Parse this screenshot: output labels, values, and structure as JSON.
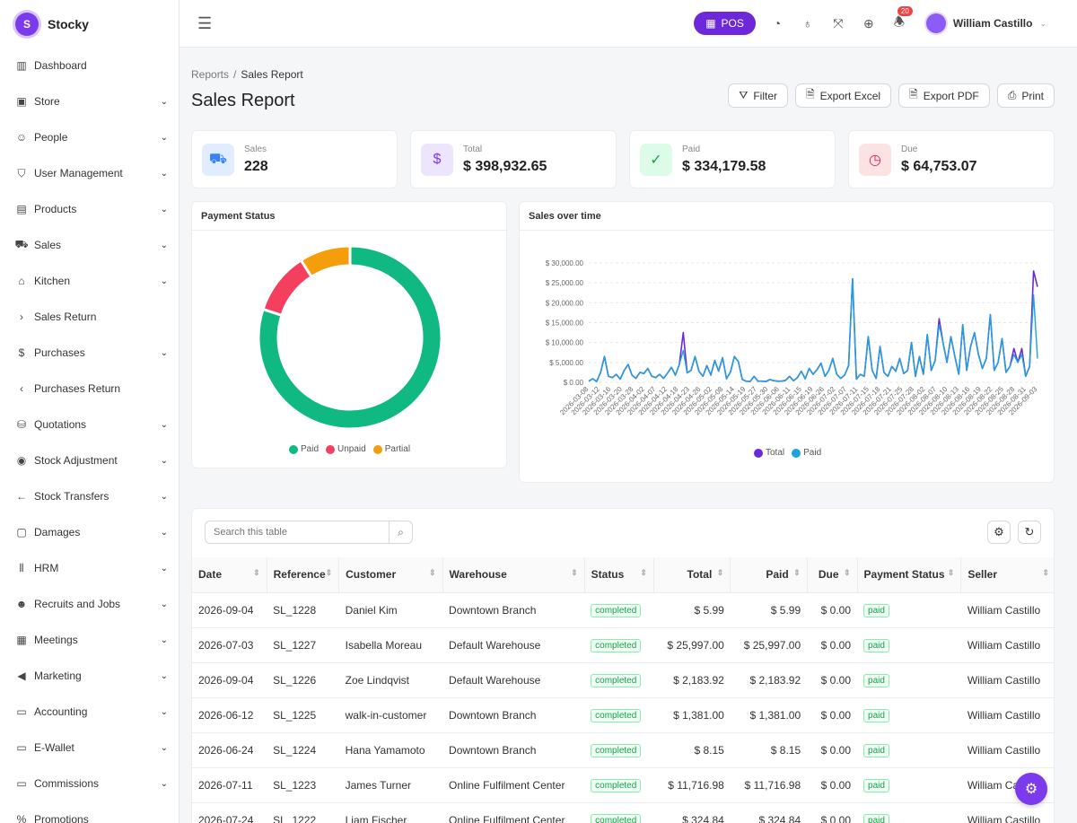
{
  "app": {
    "name": "Stocky",
    "logo_letter": "S"
  },
  "colors": {
    "primary": "#6d28d9",
    "paid": "#10b981",
    "unpaid": "#f43f5e",
    "partial": "#f59e0b",
    "total_line": "#6d28d9",
    "paid_line": "#1aa3e0"
  },
  "sidebar": {
    "items": [
      {
        "label": "Dashboard",
        "icon": "bar-chart-icon",
        "glyph": "▥",
        "chevron": ""
      },
      {
        "label": "Store",
        "icon": "store-icon",
        "glyph": "▣",
        "chevron": "⌄"
      },
      {
        "label": "People",
        "icon": "people-icon",
        "glyph": "☺",
        "chevron": "⌄"
      },
      {
        "label": "User Management",
        "icon": "shield-icon",
        "glyph": "⛉",
        "chevron": "⌄"
      },
      {
        "label": "Products",
        "icon": "books-icon",
        "glyph": "▤",
        "chevron": "⌄"
      },
      {
        "label": "Sales",
        "icon": "cart-icon",
        "glyph": "⛟",
        "chevron": "⌄"
      },
      {
        "label": "Kitchen",
        "icon": "chef-hat-icon",
        "glyph": "⌂",
        "chevron": "⌄"
      },
      {
        "label": "Sales Return",
        "icon": "chevron-right-icon",
        "glyph": "›",
        "chevron": ""
      },
      {
        "label": "Purchases",
        "icon": "receipt-icon",
        "glyph": "$",
        "chevron": "⌄"
      },
      {
        "label": "Purchases Return",
        "icon": "chevron-left-icon",
        "glyph": "‹",
        "chevron": ""
      },
      {
        "label": "Quotations",
        "icon": "basket-icon",
        "glyph": "⛁",
        "chevron": "⌄"
      },
      {
        "label": "Stock Adjustment",
        "icon": "location-pin-icon",
        "glyph": "◉",
        "chevron": "⌄"
      },
      {
        "label": "Stock Transfers",
        "icon": "arrow-left-icon",
        "glyph": "←",
        "chevron": "⌄"
      },
      {
        "label": "Damages",
        "icon": "box-icon",
        "glyph": "▢",
        "chevron": "⌄"
      },
      {
        "label": "HRM",
        "icon": "library-icon",
        "glyph": "⫴",
        "chevron": "⌄"
      },
      {
        "label": "Recruits and Jobs",
        "icon": "users-icon",
        "glyph": "☻",
        "chevron": "⌄"
      },
      {
        "label": "Meetings",
        "icon": "calendar-icon",
        "glyph": "▦",
        "chevron": "⌄"
      },
      {
        "label": "Marketing",
        "icon": "megaphone-icon",
        "glyph": "◀",
        "chevron": "⌄"
      },
      {
        "label": "Accounting",
        "icon": "wallet-icon",
        "glyph": "▭",
        "chevron": "⌄"
      },
      {
        "label": "E-Wallet",
        "icon": "e-wallet-icon",
        "glyph": "▭",
        "chevron": "⌄"
      },
      {
        "label": "Commissions",
        "icon": "commission-wallet-icon",
        "glyph": "▭",
        "chevron": "⌄"
      },
      {
        "label": "Promotions",
        "icon": "percent-icon",
        "glyph": "%",
        "chevron": ""
      }
    ]
  },
  "topbar": {
    "pos_label": "POS",
    "notification_count": "20",
    "user_name": "William Castillo"
  },
  "breadcrumb": {
    "parent": "Reports",
    "separator": "/",
    "current": "Sales Report"
  },
  "page_title": "Sales Report",
  "actions": {
    "filter": "Filter",
    "export_excel": "Export Excel",
    "export_pdf": "Export PDF",
    "print": "Print"
  },
  "stats": [
    {
      "label": "Sales",
      "value": "228",
      "icon": "cart-icon",
      "glyph": "⛟",
      "bg": "#e0ecff",
      "fg": "#3b82f6"
    },
    {
      "label": "Total",
      "value": "$ 398,932.65",
      "icon": "dollar-circle-icon",
      "glyph": "$",
      "bg": "#ede4fd",
      "fg": "#7c3aed"
    },
    {
      "label": "Paid",
      "value": "$ 334,179.58",
      "icon": "check-circle-icon",
      "glyph": "✓",
      "bg": "#dcfce7",
      "fg": "#16a34a"
    },
    {
      "label": "Due",
      "value": "$ 64,753.07",
      "icon": "clock-icon",
      "glyph": "◷",
      "bg": "#fde2e4",
      "fg": "#e11d48"
    }
  ],
  "payment_status_chart": {
    "title": "Payment Status",
    "legend": [
      {
        "label": "Paid",
        "color": "#10b981"
      },
      {
        "label": "Unpaid",
        "color": "#f43f5e"
      },
      {
        "label": "Partial",
        "color": "#f59e0b"
      }
    ]
  },
  "sales_chart": {
    "title": "Sales over time",
    "legend": [
      {
        "label": "Total",
        "color": "#6d28d9"
      },
      {
        "label": "Paid",
        "color": "#1aa3e0"
      }
    ]
  },
  "chart_data": [
    {
      "type": "pie",
      "title": "Payment Status",
      "categories": [
        "Paid",
        "Unpaid",
        "Partial"
      ],
      "values": [
        80,
        11,
        9
      ],
      "colors": [
        "#10b981",
        "#f43f5e",
        "#f59e0b"
      ],
      "legend_position": "bottom"
    },
    {
      "type": "line",
      "title": "Sales over time",
      "ylim": [
        0,
        30000
      ],
      "y_ticks": [
        "$ 0.00",
        "$ 5,000.00",
        "$ 10,000.00",
        "$ 15,000.00",
        "$ 20,000.00",
        "$ 25,000.00",
        "$ 30,000.00"
      ],
      "x_tick_labels": [
        "2026-03-08",
        "2026-03-12",
        "2026-03-16",
        "2026-03-20",
        "2026-03-28",
        "2026-04-02",
        "2026-04-07",
        "2026-04-12",
        "2026-04-18",
        "2026-04-23",
        "2026-04-26",
        "2026-05-02",
        "2026-05-08",
        "2026-05-14",
        "2026-05-19",
        "2026-05-27",
        "2026-05-30",
        "2026-06-06",
        "2026-06-11",
        "2026-06-15",
        "2026-06-19",
        "2026-06-26",
        "2026-07-02",
        "2026-07-07",
        "2026-07-11",
        "2026-07-15",
        "2026-07-18",
        "2026-07-21",
        "2026-07-25",
        "2026-07-28",
        "2026-08-02",
        "2026-08-07",
        "2026-08-10",
        "2026-08-13",
        "2026-08-16",
        "2026-08-19",
        "2026-08-22",
        "2026-08-25",
        "2026-08-28",
        "2026-08-31",
        "2026-09-03"
      ],
      "grid": true,
      "legend_position": "bottom",
      "series": [
        {
          "name": "Total",
          "color": "#6d28d9",
          "values": [
            300,
            900,
            200,
            2500,
            6500,
            1500,
            1200,
            2000,
            800,
            3000,
            4500,
            1800,
            1000,
            2500,
            2200,
            3500,
            1500,
            1200,
            2000,
            1000,
            2300,
            3800,
            1800,
            4500,
            12500,
            2400,
            3000,
            6500,
            2800,
            1500,
            4200,
            1800,
            5500,
            2800,
            6200,
            900,
            2600,
            6500,
            5200,
            700,
            300,
            200,
            1500,
            300,
            300,
            200,
            700,
            400,
            300,
            300,
            500,
            1500,
            400,
            1200,
            2800,
            900,
            3500,
            2000,
            3200,
            4800,
            1500,
            3000,
            6000,
            2000,
            1000,
            1800,
            4200,
            26000,
            800,
            2000,
            1500,
            11500,
            3000,
            1000,
            9000,
            2500,
            1500,
            4000,
            2800,
            6000,
            2200,
            3000,
            10000,
            1500,
            6500,
            2000,
            12000,
            3000,
            5500,
            16000,
            10000,
            5000,
            11500,
            6500,
            2000,
            14500,
            3000,
            9000,
            12500,
            7000,
            3500,
            6000,
            17000,
            3000,
            5000,
            11000,
            2500,
            4000,
            8500,
            5000,
            8500,
            1500,
            4000,
            28000,
            24000
          ]
        },
        {
          "name": "Paid",
          "color": "#1aa3e0",
          "values": [
            300,
            900,
            200,
            2500,
            6500,
            1500,
            1200,
            2000,
            800,
            3000,
            4500,
            1800,
            1000,
            2500,
            2200,
            3500,
            1500,
            1200,
            2000,
            1000,
            2300,
            3800,
            1800,
            4500,
            8000,
            2400,
            3000,
            6500,
            2800,
            1500,
            4200,
            1800,
            5500,
            2800,
            6200,
            900,
            2600,
            6500,
            5200,
            700,
            300,
            200,
            1500,
            300,
            300,
            200,
            700,
            400,
            300,
            300,
            500,
            1500,
            400,
            1200,
            2800,
            900,
            3500,
            2000,
            3200,
            4800,
            1500,
            3000,
            6000,
            2000,
            1000,
            1800,
            4200,
            26000,
            800,
            2000,
            1500,
            11500,
            3000,
            1000,
            9000,
            2500,
            1500,
            4000,
            2800,
            6000,
            2200,
            3000,
            10000,
            1500,
            6500,
            2000,
            12000,
            3000,
            5500,
            14500,
            10000,
            5000,
            11500,
            6500,
            2000,
            14500,
            3000,
            9000,
            12500,
            7000,
            3500,
            6000,
            17000,
            3000,
            5000,
            11000,
            2500,
            4000,
            7000,
            5000,
            7000,
            1500,
            4000,
            22000,
            6000
          ]
        }
      ]
    }
  ],
  "table": {
    "search_placeholder": "Search this table",
    "columns": [
      "Date",
      "Reference",
      "Customer",
      "Warehouse",
      "Status",
      "Total",
      "Paid",
      "Due",
      "Payment Status",
      "Seller"
    ],
    "rows": [
      [
        "2026-09-04",
        "SL_1228",
        "Daniel Kim",
        "Downtown Branch",
        "completed",
        "$ 5.99",
        "$ 5.99",
        "$ 0.00",
        "paid",
        "William Castillo"
      ],
      [
        "2026-07-03",
        "SL_1227",
        "Isabella Moreau",
        "Default Warehouse",
        "completed",
        "$ 25,997.00",
        "$ 25,997.00",
        "$ 0.00",
        "paid",
        "William Castillo"
      ],
      [
        "2026-09-04",
        "SL_1226",
        "Zoe Lindqvist",
        "Default Warehouse",
        "completed",
        "$ 2,183.92",
        "$ 2,183.92",
        "$ 0.00",
        "paid",
        "William Castillo"
      ],
      [
        "2026-06-12",
        "SL_1225",
        "walk-in-customer",
        "Downtown Branch",
        "completed",
        "$ 1,381.00",
        "$ 1,381.00",
        "$ 0.00",
        "paid",
        "William Castillo"
      ],
      [
        "2026-06-24",
        "SL_1224",
        "Hana Yamamoto",
        "Downtown Branch",
        "completed",
        "$ 8.15",
        "$ 8.15",
        "$ 0.00",
        "paid",
        "William Castillo"
      ],
      [
        "2026-07-11",
        "SL_1223",
        "James Turner",
        "Online Fulfilment Center",
        "completed",
        "$ 11,716.98",
        "$ 11,716.98",
        "$ 0.00",
        "paid",
        "William Castillo"
      ],
      [
        "2026-07-24",
        "SL_1222",
        "Liam Fischer",
        "Online Fulfilment Center",
        "completed",
        "$ 324.84",
        "$ 324.84",
        "$ 0.00",
        "paid",
        "William Castillo"
      ]
    ]
  }
}
